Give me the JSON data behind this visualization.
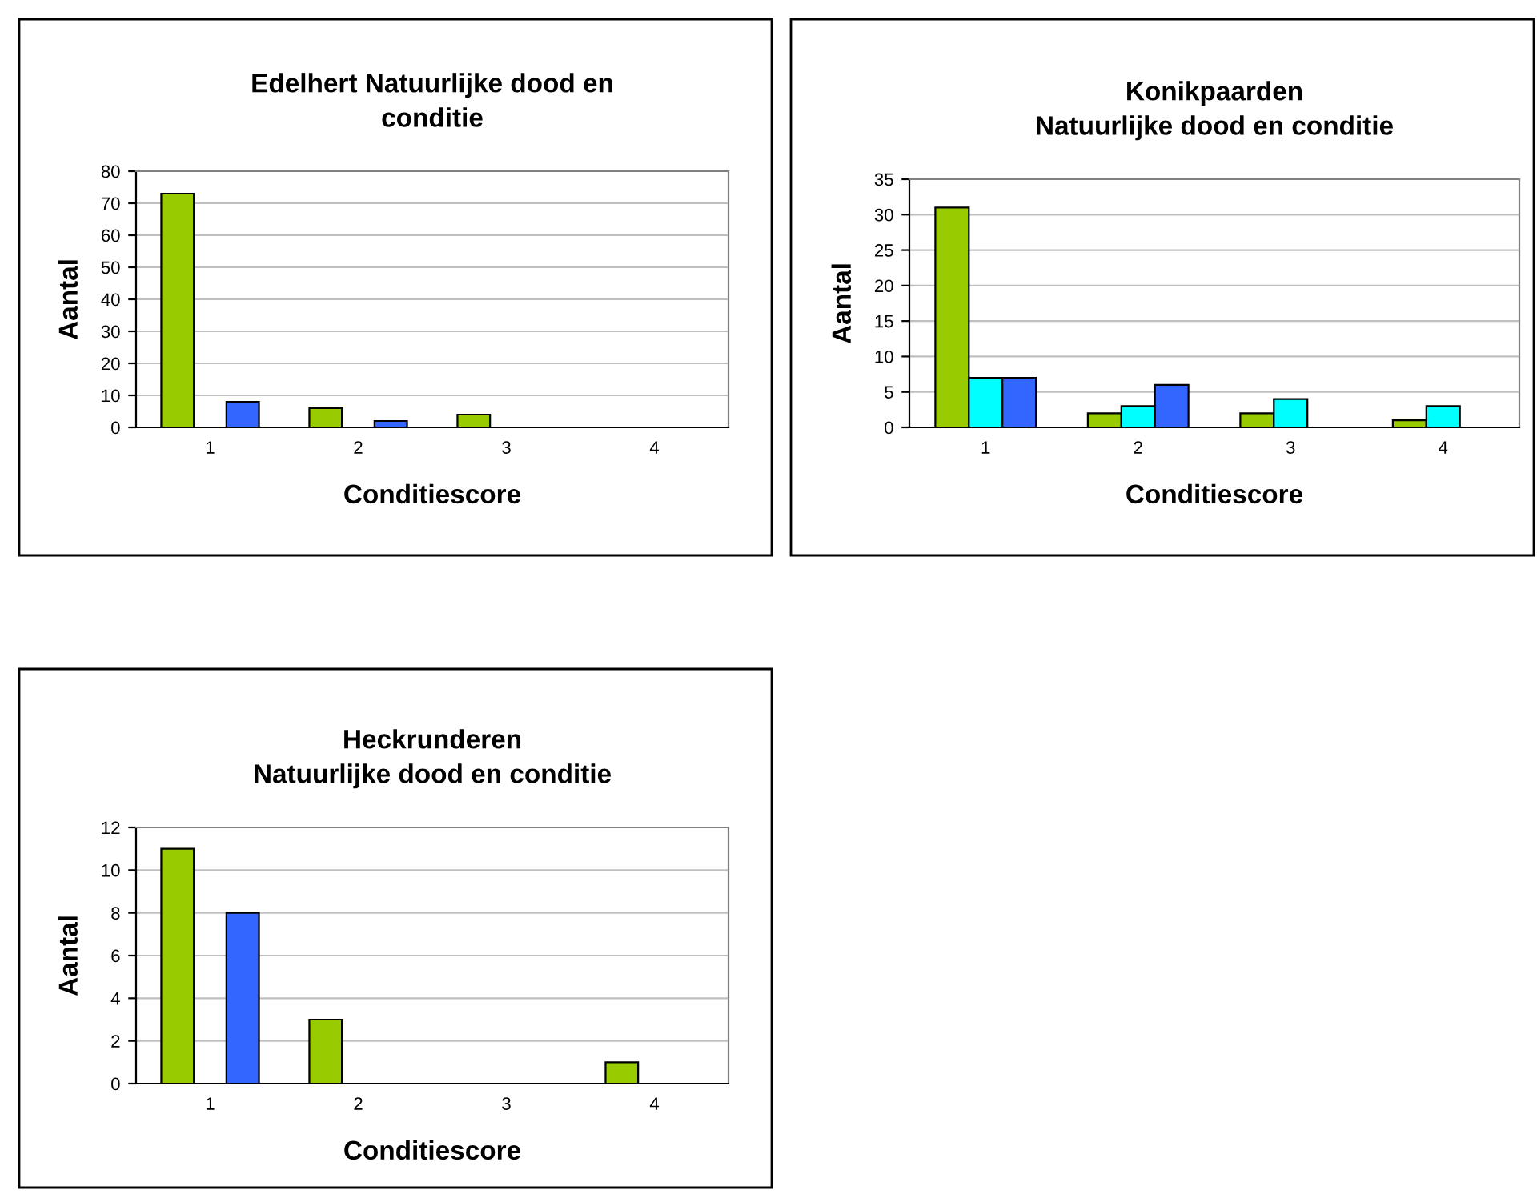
{
  "chart_data": [
    {
      "type": "bar",
      "title": "Edelhert Natuurlijke dood en\nconditie",
      "xlabel": "Conditiescore",
      "ylabel": "Aantal",
      "categories": [
        "1",
        "2",
        "3",
        "4"
      ],
      "ylim": [
        0,
        80
      ],
      "yticks": [
        0,
        10,
        20,
        30,
        40,
        50,
        60,
        70,
        80
      ],
      "grid": "y",
      "legend": false,
      "series": [
        {
          "color": "#99cc00",
          "values": [
            73,
            6,
            4,
            null
          ]
        },
        {
          "values": [
            null,
            null,
            null,
            null
          ]
        },
        {
          "color": "#3366ff",
          "values": [
            8,
            2,
            null,
            null
          ]
        }
      ]
    },
    {
      "type": "bar",
      "title": "Konikpaarden\nNatuurlijke dood en conditie",
      "xlabel": "Conditiescore",
      "ylabel": "Aantal",
      "categories": [
        "1",
        "2",
        "3",
        "4"
      ],
      "ylim": [
        0,
        35
      ],
      "yticks": [
        0,
        5,
        10,
        15,
        20,
        25,
        30,
        35
      ],
      "grid": "y",
      "legend": false,
      "series": [
        {
          "color": "#99cc00",
          "values": [
            31,
            2,
            2,
            1
          ]
        },
        {
          "color": "#00ffff",
          "values": [
            7,
            3,
            4,
            3
          ]
        },
        {
          "color": "#3366ff",
          "values": [
            7,
            6,
            null,
            null
          ]
        }
      ]
    },
    {
      "type": "bar",
      "title": "Heckrunderen\nNatuurlijke dood en conditie",
      "xlabel": "Conditiescore",
      "ylabel": "Aantal",
      "categories": [
        "1",
        "2",
        "3",
        "4"
      ],
      "ylim": [
        0,
        12
      ],
      "yticks": [
        0,
        2,
        4,
        6,
        8,
        10,
        12
      ],
      "grid": "y",
      "legend": false,
      "series": [
        {
          "color": "#99cc00",
          "values": [
            11,
            3,
            null,
            1
          ]
        },
        {
          "values": [
            null,
            null,
            null,
            null
          ]
        },
        {
          "color": "#3366ff",
          "values": [
            8,
            null,
            null,
            null
          ]
        }
      ]
    }
  ]
}
